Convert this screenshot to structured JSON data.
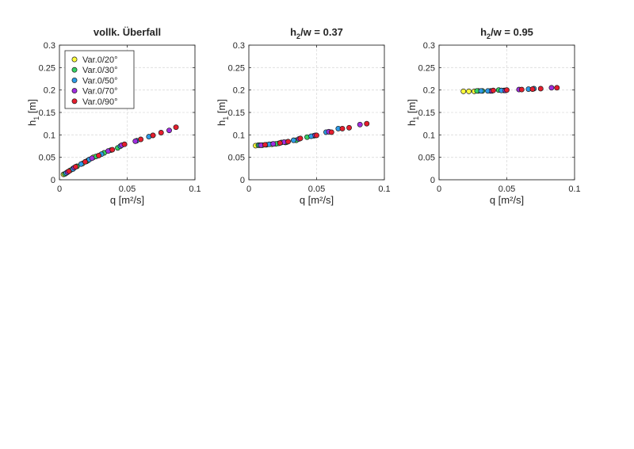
{
  "figure": {
    "background": "#ffffff",
    "grid_color": "#dcdcdc",
    "axis_color": "#262626"
  },
  "legend": {
    "placement": "top-left",
    "entries": [
      {
        "label": "Var.0/20°",
        "color": "#ffff3c"
      },
      {
        "label": "Var.0/30°",
        "color": "#35d264"
      },
      {
        "label": "Var.0/50°",
        "color": "#2d9be6"
      },
      {
        "label": "Var.0/70°",
        "color": "#a02ee0"
      },
      {
        "label": "Var.0/90°",
        "color": "#e61e2d"
      }
    ]
  },
  "chart_data": [
    {
      "type": "scatter",
      "title": "vollk. Überfall",
      "title_sub": "",
      "title_rest": "",
      "xlabel": "q [m²/s]",
      "ylabel_main": "h",
      "ylabel_sub": "1",
      "ylabel_rest": " [m]",
      "xlim": [
        0,
        0.1
      ],
      "ylim": [
        0,
        0.3
      ],
      "xticks": [
        0,
        0.05,
        0.1
      ],
      "xtick_labels": [
        "0",
        "0.05",
        "0.1"
      ],
      "yticks": [
        0,
        0.05,
        0.1,
        0.15,
        0.2,
        0.25,
        0.3
      ],
      "ytick_labels": [
        "0",
        "0.05",
        "0.1",
        "0.15",
        "0.2",
        "0.25",
        "0.3"
      ],
      "grid": true,
      "show_legend": true,
      "series": [
        {
          "name": "Var.0/20°",
          "color": "#ffff3c",
          "points": [
            [
              0.003,
              0.012
            ],
            [
              0.006,
              0.017
            ],
            [
              0.01,
              0.025
            ],
            [
              0.017,
              0.036
            ],
            [
              0.021,
              0.043
            ],
            [
              0.025,
              0.05
            ]
          ]
        },
        {
          "name": "Var.0/30°",
          "color": "#35d264",
          "points": [
            [
              0.004,
              0.013
            ],
            [
              0.008,
              0.021
            ],
            [
              0.013,
              0.03
            ],
            [
              0.02,
              0.041
            ],
            [
              0.027,
              0.052
            ],
            [
              0.033,
              0.06
            ],
            [
              0.038,
              0.066
            ],
            [
              0.043,
              0.071
            ]
          ]
        },
        {
          "name": "Var.0/50°",
          "color": "#2d9be6",
          "points": [
            [
              0.005,
              0.015
            ],
            [
              0.01,
              0.024
            ],
            [
              0.016,
              0.035
            ],
            [
              0.022,
              0.045
            ],
            [
              0.031,
              0.057
            ],
            [
              0.045,
              0.075
            ],
            [
              0.057,
              0.087
            ],
            [
              0.066,
              0.096
            ]
          ]
        },
        {
          "name": "Var.0/70°",
          "color": "#a02ee0",
          "points": [
            [
              0.006,
              0.017
            ],
            [
              0.011,
              0.027
            ],
            [
              0.024,
              0.048
            ],
            [
              0.036,
              0.064
            ],
            [
              0.046,
              0.077
            ],
            [
              0.056,
              0.086
            ],
            [
              0.069,
              0.099
            ],
            [
              0.081,
              0.11
            ]
          ]
        },
        {
          "name": "Var.0/90°",
          "color": "#e61e2d",
          "points": [
            [
              0.007,
              0.019
            ],
            [
              0.012,
              0.029
            ],
            [
              0.019,
              0.04
            ],
            [
              0.029,
              0.054
            ],
            [
              0.039,
              0.067
            ],
            [
              0.048,
              0.079
            ],
            [
              0.06,
              0.09
            ],
            [
              0.069,
              0.099
            ],
            [
              0.075,
              0.105
            ],
            [
              0.086,
              0.117
            ]
          ]
        }
      ]
    },
    {
      "type": "scatter",
      "title": "h",
      "title_sub": "2",
      "title_rest": "/w = 0.37",
      "xlabel": "q [m²/s]",
      "ylabel_main": "h",
      "ylabel_sub": "1",
      "ylabel_rest": " [m]",
      "xlim": [
        0,
        0.1
      ],
      "ylim": [
        0,
        0.3
      ],
      "xticks": [
        0,
        0.05,
        0.1
      ],
      "xtick_labels": [
        "0",
        "0.05",
        "0.1"
      ],
      "yticks": [
        0,
        0.05,
        0.1,
        0.15,
        0.2,
        0.25,
        0.3
      ],
      "ytick_labels": [
        "0",
        "0.05",
        "0.1",
        "0.15",
        "0.2",
        "0.25",
        "0.3"
      ],
      "grid": true,
      "show_legend": false,
      "series": [
        {
          "name": "Var.0/20°",
          "color": "#ffff3c",
          "points": [
            [
              0.005,
              0.076
            ],
            [
              0.01,
              0.077
            ],
            [
              0.017,
              0.079
            ],
            [
              0.022,
              0.081
            ],
            [
              0.027,
              0.083
            ]
          ]
        },
        {
          "name": "Var.0/30°",
          "color": "#35d264",
          "points": [
            [
              0.007,
              0.077
            ],
            [
              0.013,
              0.078
            ],
            [
              0.02,
              0.08
            ],
            [
              0.028,
              0.084
            ],
            [
              0.035,
              0.088
            ],
            [
              0.043,
              0.095
            ],
            [
              0.048,
              0.098
            ]
          ]
        },
        {
          "name": "Var.0/50°",
          "color": "#2d9be6",
          "points": [
            [
              0.008,
              0.077
            ],
            [
              0.015,
              0.079
            ],
            [
              0.024,
              0.083
            ],
            [
              0.033,
              0.088
            ],
            [
              0.046,
              0.097
            ],
            [
              0.057,
              0.106
            ],
            [
              0.066,
              0.114
            ]
          ]
        },
        {
          "name": "Var.0/70°",
          "color": "#a02ee0",
          "points": [
            [
              0.009,
              0.077
            ],
            [
              0.018,
              0.08
            ],
            [
              0.026,
              0.084
            ],
            [
              0.037,
              0.091
            ],
            [
              0.049,
              0.099
            ],
            [
              0.059,
              0.107
            ],
            [
              0.082,
              0.123
            ]
          ]
        },
        {
          "name": "Var.0/90°",
          "color": "#e61e2d",
          "points": [
            [
              0.012,
              0.078
            ],
            [
              0.023,
              0.082
            ],
            [
              0.029,
              0.085
            ],
            [
              0.038,
              0.092
            ],
            [
              0.05,
              0.099
            ],
            [
              0.061,
              0.106
            ],
            [
              0.069,
              0.114
            ],
            [
              0.074,
              0.116
            ],
            [
              0.087,
              0.125
            ]
          ]
        }
      ]
    },
    {
      "type": "scatter",
      "title": "h",
      "title_sub": "2",
      "title_rest": "/w = 0.95",
      "xlabel": "q [m²/s]",
      "ylabel_main": "h",
      "ylabel_sub": "1",
      "ylabel_rest": " [m]",
      "xlim": [
        0,
        0.1
      ],
      "ylim": [
        0,
        0.3
      ],
      "xticks": [
        0,
        0.05,
        0.1
      ],
      "xtick_labels": [
        "0",
        "0.05",
        "0.1"
      ],
      "yticks": [
        0,
        0.05,
        0.1,
        0.15,
        0.2,
        0.25,
        0.3
      ],
      "ytick_labels": [
        "0",
        "0.05",
        "0.1",
        "0.15",
        "0.2",
        "0.25",
        "0.3"
      ],
      "grid": true,
      "show_legend": false,
      "series": [
        {
          "name": "Var.0/20°",
          "color": "#ffff3c",
          "points": [
            [
              0.018,
              0.197
            ],
            [
              0.022,
              0.197
            ],
            [
              0.026,
              0.197
            ],
            [
              0.029,
              0.198
            ]
          ]
        },
        {
          "name": "Var.0/30°",
          "color": "#35d264",
          "points": [
            [
              0.028,
              0.198
            ],
            [
              0.032,
              0.198
            ],
            [
              0.038,
              0.198
            ],
            [
              0.044,
              0.2
            ],
            [
              0.048,
              0.199
            ]
          ]
        },
        {
          "name": "Var.0/50°",
          "color": "#2d9be6",
          "points": [
            [
              0.031,
              0.198
            ],
            [
              0.036,
              0.198
            ],
            [
              0.046,
              0.199
            ],
            [
              0.066,
              0.202
            ],
            [
              0.07,
              0.203
            ]
          ]
        },
        {
          "name": "Var.0/70°",
          "color": "#a02ee0",
          "points": [
            [
              0.039,
              0.198
            ],
            [
              0.049,
              0.199
            ],
            [
              0.059,
              0.201
            ],
            [
              0.083,
              0.205
            ]
          ]
        },
        {
          "name": "Var.0/90°",
          "color": "#e61e2d",
          "points": [
            [
              0.04,
              0.199
            ],
            [
              0.05,
              0.2
            ],
            [
              0.061,
              0.201
            ],
            [
              0.069,
              0.202
            ],
            [
              0.075,
              0.203
            ],
            [
              0.087,
              0.205
            ]
          ]
        }
      ]
    }
  ]
}
